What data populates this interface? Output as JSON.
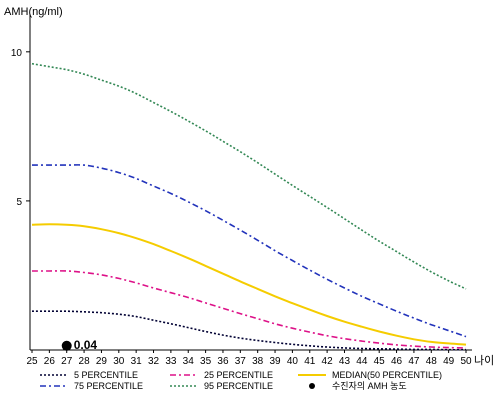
{
  "chart_data": {
    "type": "line",
    "ylabel": "AMH(ng/ml)",
    "xlabel": "나이",
    "xlim": [
      25,
      50
    ],
    "ylim": [
      0,
      11
    ],
    "yticks": [
      5,
      10
    ],
    "x": [
      25,
      26,
      27,
      28,
      29,
      30,
      31,
      32,
      33,
      34,
      35,
      36,
      37,
      38,
      39,
      40,
      41,
      42,
      43,
      44,
      45,
      46,
      47,
      48,
      49,
      50
    ],
    "series": [
      {
        "name": "5 PERCENTILE",
        "color": "#000033",
        "dash": "2,2",
        "values": [
          1.3,
          1.3,
          1.3,
          1.28,
          1.25,
          1.2,
          1.12,
          1.0,
          0.88,
          0.75,
          0.62,
          0.5,
          0.4,
          0.32,
          0.25,
          0.19,
          0.14,
          0.1,
          0.07,
          0.05,
          0.04,
          0.03,
          0.02,
          0.02,
          0.01,
          0.01
        ]
      },
      {
        "name": "25 PERCENTILE",
        "color": "#dd1188",
        "dash": "6,3,2,3",
        "values": [
          2.65,
          2.65,
          2.65,
          2.6,
          2.52,
          2.4,
          2.25,
          2.08,
          1.92,
          1.76,
          1.58,
          1.4,
          1.22,
          1.05,
          0.88,
          0.73,
          0.6,
          0.48,
          0.38,
          0.3,
          0.23,
          0.17,
          0.13,
          0.1,
          0.08,
          0.07
        ]
      },
      {
        "name": "MEDIAN(50 PERCENTILE)",
        "color": "#f5cc00",
        "dash": "",
        "values": [
          4.2,
          4.22,
          4.2,
          4.15,
          4.05,
          3.92,
          3.75,
          3.55,
          3.32,
          3.08,
          2.82,
          2.56,
          2.3,
          2.05,
          1.8,
          1.57,
          1.35,
          1.14,
          0.95,
          0.78,
          0.62,
          0.48,
          0.36,
          0.27,
          0.22,
          0.18
        ]
      },
      {
        "name": "75 PERCENTILE",
        "color": "#2233bb",
        "dash": "6,3,2,3",
        "values": [
          6.2,
          6.2,
          6.2,
          6.2,
          6.1,
          5.95,
          5.75,
          5.5,
          5.25,
          4.97,
          4.67,
          4.35,
          4.02,
          3.68,
          3.33,
          3.0,
          2.68,
          2.37,
          2.08,
          1.8,
          1.55,
          1.3,
          1.07,
          0.85,
          0.65,
          0.45
        ]
      },
      {
        "name": "95 PERCENTILE",
        "color": "#338855",
        "dash": "2,2",
        "values": [
          9.6,
          9.5,
          9.4,
          9.25,
          9.05,
          8.85,
          8.6,
          8.3,
          8.0,
          7.68,
          7.35,
          7.0,
          6.65,
          6.28,
          5.9,
          5.52,
          5.15,
          4.78,
          4.4,
          4.02,
          3.65,
          3.3,
          2.95,
          2.62,
          2.32,
          2.05
        ]
      }
    ],
    "marker": {
      "name": "수진자의 AMH 농도",
      "x": 27,
      "y": 0.04,
      "label": "0.04",
      "color": "#000000"
    },
    "legend": {
      "placement": "bottom",
      "order": [
        "5 PERCENTILE",
        "25 PERCENTILE",
        "MEDIAN(50 PERCENTILE)",
        "75 PERCENTILE",
        "95 PERCENTILE",
        "수진자의 AMH 농도"
      ]
    },
    "grid": false
  }
}
